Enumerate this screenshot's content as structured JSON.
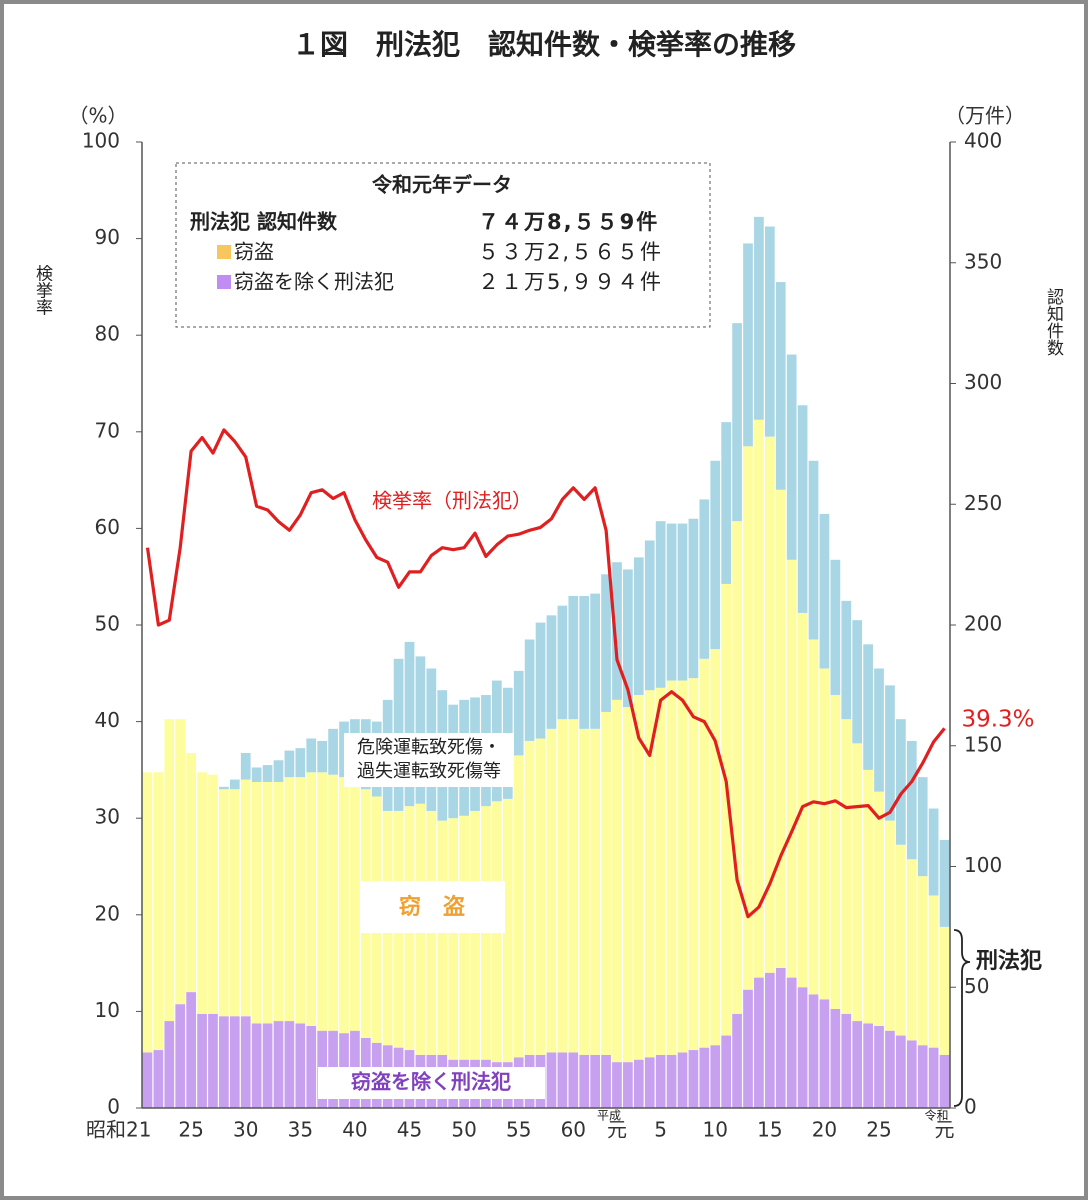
{
  "chart_data": {
    "type": "bar",
    "title": "１図　刑法犯　認知件数・検挙率の推移",
    "y_unit": "（%）",
    "y2_unit": "（万件）",
    "y_label": "検挙率",
    "y2_label": "認知件数",
    "ylim": [
      0,
      100
    ],
    "yticks": [
      0,
      10,
      20,
      30,
      40,
      50,
      60,
      70,
      80,
      90,
      100
    ],
    "y2lim": [
      0,
      400
    ],
    "y2ticks": [
      0,
      50,
      100,
      150,
      200,
      250,
      300,
      350,
      400
    ],
    "categories": [
      "昭和21",
      null,
      null,
      null,
      "25",
      null,
      null,
      null,
      null,
      "30",
      null,
      null,
      null,
      null,
      "35",
      null,
      null,
      null,
      null,
      "40",
      null,
      null,
      null,
      null,
      "45",
      null,
      null,
      null,
      null,
      "50",
      null,
      null,
      null,
      null,
      "55",
      null,
      null,
      null,
      null,
      "60",
      null,
      null,
      null,
      "元",
      null,
      null,
      null,
      "5",
      null,
      null,
      null,
      null,
      "10",
      null,
      null,
      null,
      null,
      "15",
      null,
      null,
      null,
      null,
      "20",
      null,
      null,
      null,
      null,
      "25",
      null,
      null,
      null,
      null,
      null,
      "元"
    ],
    "era_labels": [
      "平成",
      "令和"
    ],
    "series": [
      {
        "name": "窃盗を除く刑法犯",
        "color": "#c8a0f0",
        "axis": "y2",
        "values": [
          23,
          24,
          36,
          43,
          48,
          39,
          39,
          38,
          38,
          38,
          35,
          35,
          36,
          36,
          35,
          34,
          32,
          32,
          31,
          32,
          29,
          27,
          26,
          25,
          24,
          22,
          22,
          22,
          20,
          20,
          20,
          20,
          19,
          19,
          21,
          22,
          22,
          23,
          23,
          23,
          22,
          22,
          22,
          19,
          19,
          20,
          21,
          22,
          22,
          23,
          24,
          25,
          26,
          30,
          39,
          49,
          54,
          56,
          58,
          54,
          50,
          47,
          45,
          41,
          39,
          36,
          35,
          34,
          32,
          30,
          28,
          26,
          25,
          22
        ]
      },
      {
        "name": "窃　盗",
        "color": "#fdfd9e",
        "axis": "y2",
        "values": [
          116,
          115,
          125,
          118,
          99,
          100,
          99,
          94,
          94,
          98,
          100,
          100,
          99,
          101,
          102,
          105,
          107,
          106,
          106,
          101,
          103,
          102,
          97,
          98,
          101,
          104,
          101,
          97,
          100,
          101,
          103,
          105,
          108,
          109,
          125,
          130,
          131,
          134,
          138,
          138,
          135,
          135,
          142,
          150,
          147,
          151,
          152,
          152,
          155,
          154,
          154,
          161,
          164,
          187,
          204,
          225,
          231,
          222,
          198,
          173,
          155,
          147,
          137,
          130,
          122,
          115,
          105,
          97,
          87,
          79,
          75,
          70,
          63,
          53
        ]
      },
      {
        "name": "危険運転致死傷・過失運転致死傷等",
        "color": "#a9d6e4",
        "axis": "y2",
        "values": [
          0,
          0,
          0,
          0,
          0,
          0,
          0,
          1,
          4,
          11,
          6,
          7,
          9,
          11,
          12,
          14,
          13,
          19,
          23,
          28,
          29,
          31,
          46,
          63,
          68,
          61,
          59,
          54,
          47,
          48,
          47,
          46,
          50,
          46,
          35,
          42,
          48,
          47,
          47,
          51,
          55,
          56,
          57,
          57,
          57,
          57,
          62,
          69,
          65,
          65,
          66,
          66,
          78,
          67,
          82,
          84,
          84,
          87,
          86,
          85,
          86,
          74,
          64,
          56,
          49,
          51,
          52,
          51,
          56,
          52,
          49,
          41,
          36,
          36
        ]
      },
      {
        "name": "検挙率（刑法犯）",
        "color": "#e02020",
        "type": "line",
        "values": [
          58,
          50,
          50.5,
          58,
          68,
          69.4,
          67.8,
          70.2,
          69,
          67.4,
          62.3,
          61.9,
          60.7,
          59.8,
          61.4,
          63.7,
          64,
          63.1,
          63.7,
          60.9,
          58.8,
          57,
          56.5,
          53.9,
          55.5,
          55.5,
          57.2,
          58,
          57.8,
          58,
          59.5,
          57.1,
          58.3,
          59.2,
          59.4,
          59.8,
          60.1,
          61,
          63,
          64.2,
          63,
          64.2,
          59.8,
          46.4,
          43.3,
          38.3,
          36.5,
          42.2,
          43.1,
          42.2,
          40.5,
          40,
          38,
          33.8,
          23.6,
          19.8,
          20.8,
          23.2,
          26.1,
          28.6,
          31.2,
          31.7,
          31.5,
          31.8,
          31.1,
          31.2,
          31.3,
          30,
          30.6,
          32.5,
          33.8,
          35.7,
          37.9,
          39.3
        ],
        "value_labels": [
          null,
          null,
          null,
          null,
          null,
          null,
          null,
          null,
          null,
          null,
          null,
          null,
          null,
          null,
          null,
          null,
          null,
          null,
          null,
          null,
          null,
          null,
          null,
          null,
          null,
          null,
          null,
          null,
          null,
          null,
          null,
          null,
          null,
          null,
          null,
          null,
          null,
          null,
          null,
          null,
          null,
          null,
          null,
          null,
          null,
          null,
          null,
          null,
          null,
          null,
          null,
          null,
          null,
          null,
          null,
          null,
          null,
          null,
          null,
          null,
          null,
          null,
          null,
          null,
          null,
          null,
          null,
          null,
          null,
          null,
          null,
          null,
          null,
          "39.3%"
        ]
      }
    ],
    "inset": {
      "title": "令和元年データ",
      "rows": [
        [
          "刑法犯 認知件数",
          "７４万8,５５9件"
        ],
        [
          "窃盗",
          "５３万2,５６５件"
        ],
        [
          "窃盗を除く刑法犯",
          "２１万5,９９４件"
        ]
      ]
    },
    "brace_label": "刑法犯"
  }
}
